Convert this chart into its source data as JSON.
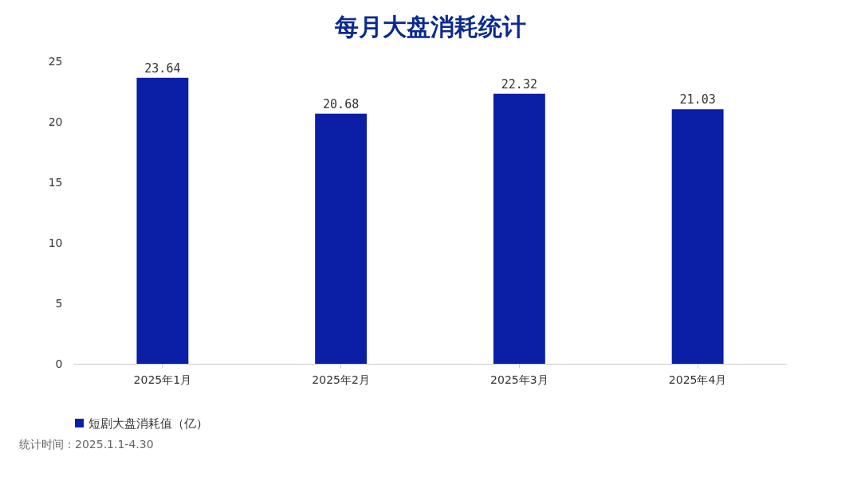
{
  "chart_data": {
    "type": "bar",
    "title": "每月大盘消耗统计",
    "categories": [
      "2025年1月",
      "2025年2月",
      "2025年3月",
      "2025年4月"
    ],
    "series": [
      {
        "name": "短剧大盘消耗值（亿）",
        "color": "#0a1fa6",
        "values": [
          23.64,
          20.68,
          22.32,
          21.03
        ]
      }
    ],
    "ylim": [
      0,
      25
    ],
    "yticks": [
      0,
      5,
      10,
      15,
      20,
      25
    ],
    "grid": false,
    "legend": "bottom",
    "data_labels": true,
    "annotations": [
      "统计时间：2025.1.1-4.30"
    ]
  }
}
